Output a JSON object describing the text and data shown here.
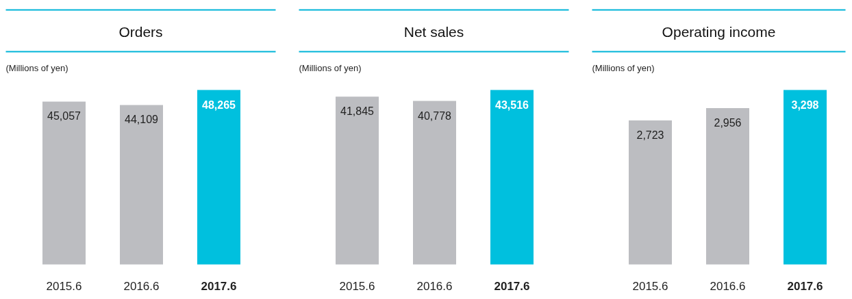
{
  "chart_data": [
    {
      "type": "bar",
      "title": "Orders",
      "subtitle": "(Millions of yen)",
      "categories": [
        "2015.6",
        "2016.6",
        "2017.6"
      ],
      "values": [
        45057,
        44109,
        48265
      ],
      "value_labels": [
        "45,057",
        "44,109",
        "48,265"
      ],
      "colors": [
        "#bcbdc1",
        "#bcbdc1",
        "#00c0de"
      ],
      "tick_labels": "x"
    },
    {
      "type": "bar",
      "title": "Net sales",
      "subtitle": "(Millions of yen)",
      "categories": [
        "2015.6",
        "2016.6",
        "2017.6"
      ],
      "values": [
        41845,
        40778,
        43516
      ],
      "value_labels": [
        "41,845",
        "40,778",
        "43,516"
      ],
      "colors": [
        "#bcbdc1",
        "#bcbdc1",
        "#00c0de"
      ],
      "tick_labels": "x"
    },
    {
      "type": "bar",
      "title": "Operating income",
      "subtitle": "(Millions of yen)",
      "categories": [
        "2015.6",
        "2016.6",
        "2017.6"
      ],
      "values": [
        2723,
        2956,
        3298
      ],
      "value_labels": [
        "2,723",
        "2,956",
        "3,298"
      ],
      "colors": [
        "#bcbdc1",
        "#bcbdc1",
        "#00c0de"
      ],
      "tick_labels": "x"
    }
  ]
}
